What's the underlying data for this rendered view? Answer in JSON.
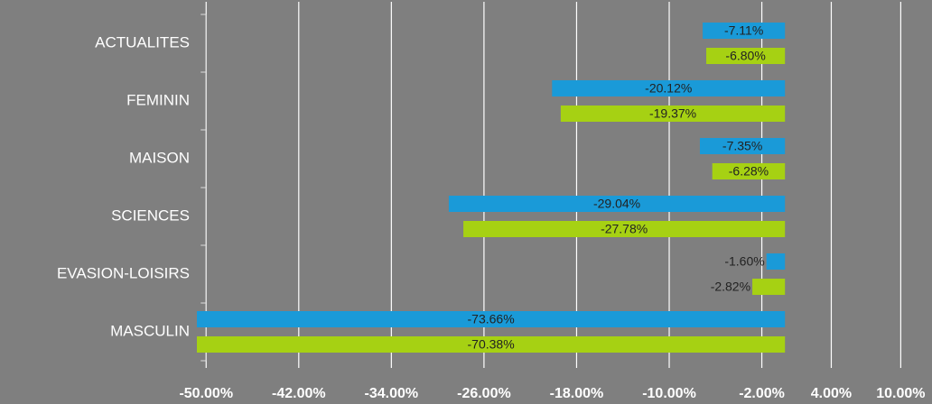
{
  "chart_data": {
    "type": "hbar",
    "categories": [
      "ACTUALITES",
      "FEMININ",
      "MAISON",
      "SCIENCES",
      "EVASION-LOISIRS",
      "MASCULIN"
    ],
    "series": [
      {
        "color": "#1a9ad8",
        "values": [
          -7.11,
          -20.12,
          -7.35,
          -29.04,
          -1.6,
          -73.66
        ],
        "value_labels": [
          "-7.11%",
          "-20.12%",
          "-7.35%",
          "-29.04%",
          "-1.60%",
          "-73.66%"
        ]
      },
      {
        "color": "#a6d113",
        "values": [
          -6.8,
          -19.37,
          -6.28,
          -27.78,
          -2.82,
          -70.38
        ],
        "value_labels": [
          "-6.80%",
          "-19.37%",
          "-6.28%",
          "-27.78%",
          "-2.82%",
          "-70.38%"
        ]
      }
    ],
    "xlim": [
      -50.8,
      12.7
    ],
    "xticks": [
      {
        "value": -50,
        "label": "-50.00%"
      },
      {
        "value": -42,
        "label": "-42.00%"
      },
      {
        "value": -34,
        "label": "-34.00%"
      },
      {
        "value": -26,
        "label": "-26.00%"
      },
      {
        "value": -18,
        "label": "-18.00%"
      },
      {
        "value": -10,
        "label": "-10.00%"
      },
      {
        "value": -2,
        "label": "-2.00%"
      },
      {
        "value": 4,
        "label": "4.00%"
      },
      {
        "value": 10,
        "label": "10.00%"
      }
    ],
    "grid": true
  }
}
